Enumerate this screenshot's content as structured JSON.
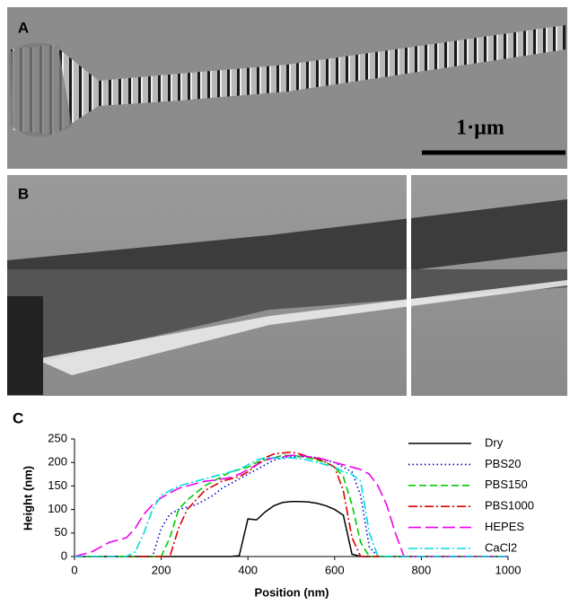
{
  "figure": {
    "panel_a": "A",
    "panel_b": "B",
    "panel_c": "C",
    "scale_bar": "1·µm"
  },
  "chart_data": {
    "type": "line",
    "x_label": "Position (nm)",
    "y_label": "Height (nm)",
    "x": [
      0,
      20,
      40,
      60,
      80,
      100,
      120,
      140,
      160,
      180,
      200,
      220,
      240,
      260,
      280,
      300,
      320,
      340,
      360,
      380,
      400,
      420,
      440,
      460,
      480,
      500,
      520,
      540,
      560,
      580,
      600,
      620,
      640,
      660,
      680,
      700,
      720,
      740,
      760,
      780,
      800,
      820,
      840,
      860,
      880,
      900,
      920,
      940,
      960,
      980,
      1000
    ],
    "xlim": [
      0,
      1000
    ],
    "xticks": [
      0,
      200,
      400,
      600,
      800,
      1000
    ],
    "ylim": [
      0,
      250
    ],
    "yticks": [
      0,
      50,
      100,
      150,
      200,
      250
    ],
    "legend": "right",
    "series": [
      {
        "name": "Dry",
        "color": "#000000",
        "dash": "solid",
        "values": [
          0,
          0,
          0,
          0,
          0,
          0,
          0,
          0,
          0,
          0,
          0,
          0,
          0,
          0,
          0,
          0,
          0,
          0,
          0,
          2,
          80,
          78,
          95,
          108,
          115,
          117,
          117,
          116,
          113,
          108,
          100,
          88,
          5,
          0,
          0,
          0,
          0,
          0,
          0,
          0,
          0,
          0,
          0,
          0,
          0,
          0,
          0,
          0,
          0,
          0,
          0
        ]
      },
      {
        "name": "PBS20",
        "color": "#0000cc",
        "dash": "dotted",
        "values": [
          0,
          0,
          0,
          0,
          0,
          0,
          0,
          0,
          0,
          0,
          60,
          90,
          100,
          105,
          110,
          120,
          130,
          145,
          155,
          165,
          175,
          185,
          195,
          205,
          210,
          212,
          212,
          212,
          210,
          205,
          200,
          190,
          180,
          130,
          20,
          0,
          0,
          0,
          0,
          0,
          0,
          0,
          0,
          0,
          0,
          0,
          0,
          0,
          0,
          0,
          0
        ]
      },
      {
        "name": "PBS150",
        "color": "#00cc00",
        "dash": "dashed",
        "values": [
          0,
          0,
          0,
          0,
          0,
          0,
          0,
          0,
          0,
          0,
          0,
          40,
          100,
          120,
          135,
          150,
          160,
          170,
          180,
          185,
          190,
          200,
          205,
          210,
          215,
          215,
          213,
          210,
          205,
          200,
          190,
          170,
          110,
          30,
          0,
          0,
          0,
          0,
          0,
          0,
          0,
          0,
          0,
          0,
          0,
          0,
          0,
          0,
          0,
          0,
          0
        ]
      },
      {
        "name": "PBS1000",
        "color": "#dd0000",
        "dash": "dashdot",
        "values": [
          0,
          0,
          0,
          0,
          0,
          0,
          0,
          0,
          0,
          0,
          0,
          0,
          60,
          100,
          120,
          140,
          150,
          160,
          165,
          170,
          180,
          195,
          210,
          218,
          220,
          222,
          218,
          212,
          208,
          200,
          190,
          140,
          40,
          0,
          0,
          0,
          0,
          0,
          0,
          0,
          0,
          0,
          0,
          0,
          0,
          0,
          0,
          0,
          0,
          0,
          0
        ]
      },
      {
        "name": "HEPES",
        "color": "#ee00ee",
        "dash": "longdash",
        "values": [
          0,
          5,
          10,
          20,
          30,
          35,
          40,
          60,
          90,
          110,
          125,
          135,
          145,
          150,
          155,
          160,
          162,
          165,
          168,
          175,
          185,
          195,
          205,
          210,
          212,
          215,
          215,
          212,
          210,
          205,
          200,
          195,
          190,
          185,
          175,
          150,
          110,
          50,
          0,
          0,
          0,
          0,
          0,
          0,
          0,
          0,
          0,
          0,
          0,
          0,
          0
        ]
      },
      {
        "name": "CaCl2",
        "color": "#00dddd",
        "dash": "dashdot",
        "values": [
          0,
          0,
          0,
          0,
          0,
          0,
          0,
          10,
          50,
          100,
          130,
          140,
          150,
          155,
          160,
          165,
          170,
          175,
          180,
          185,
          195,
          205,
          210,
          210,
          208,
          210,
          208,
          205,
          200,
          195,
          190,
          180,
          175,
          160,
          50,
          0,
          0,
          0,
          0,
          0,
          0,
          0,
          0,
          0,
          0,
          0,
          0,
          0,
          0,
          0,
          0
        ]
      }
    ]
  }
}
